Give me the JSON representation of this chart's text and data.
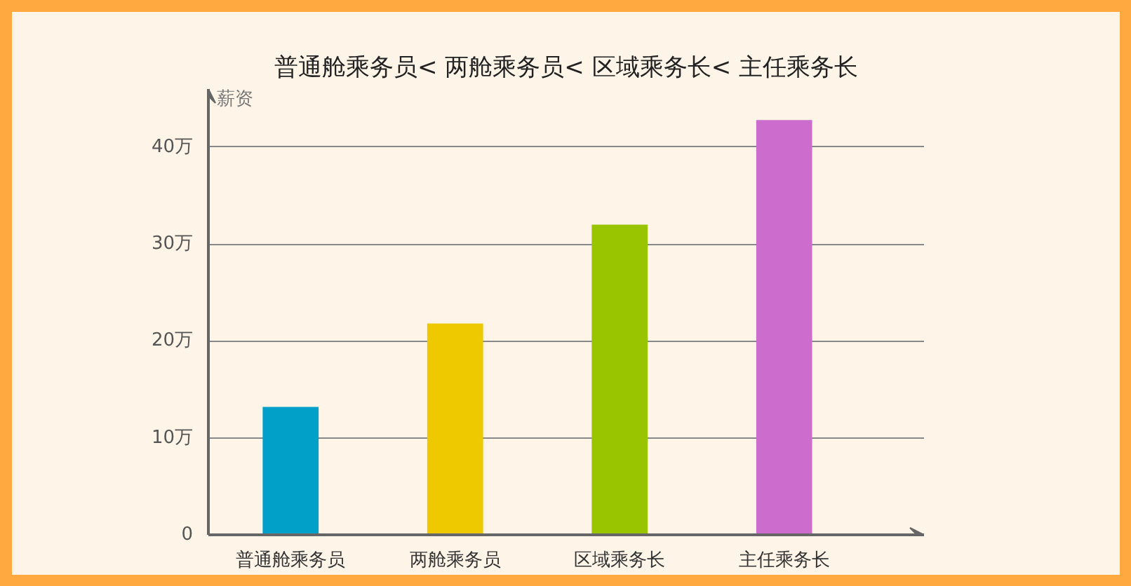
{
  "chart_data": {
    "type": "bar",
    "title": "普通舱乘务员< 两舱乘务员< 区域乘务长< 主任乘务长",
    "ylabel": "薪资",
    "categories": [
      "普通舱乘务员",
      "两舱乘务员",
      "区域乘务长",
      "主任乘务长"
    ],
    "values": [
      13.2,
      21.8,
      32.0,
      42.8
    ],
    "colors": [
      "#00a0c8",
      "#eec900",
      "#99c400",
      "#cc6ccc"
    ],
    "ylim": [
      0,
      46
    ],
    "yticks": [
      0,
      {
        "value": 10,
        "label": "10万"
      },
      {
        "value": 20,
        "label": "20万"
      },
      {
        "value": 30,
        "label": "30万"
      },
      {
        "value": 40,
        "label": "40万"
      }
    ],
    "grid": "y"
  }
}
